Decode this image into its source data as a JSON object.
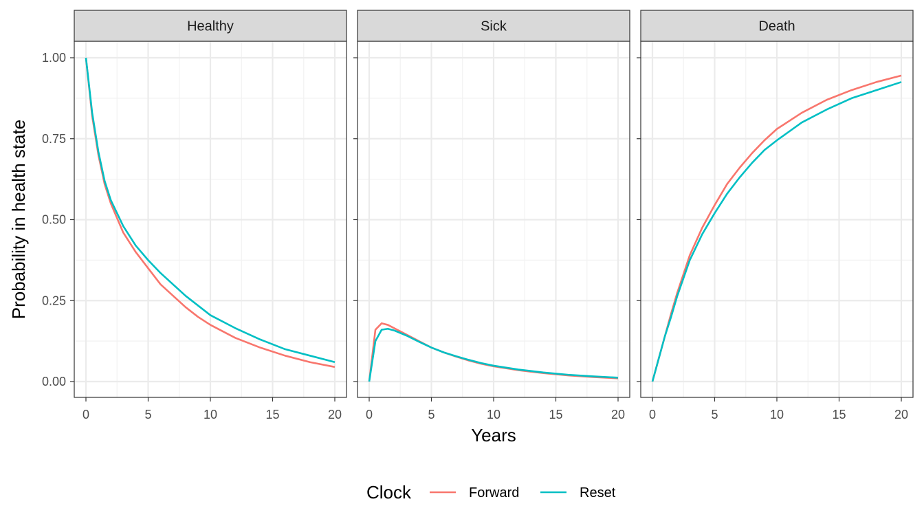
{
  "chart_data": {
    "type": "line",
    "xlabel": "Years",
    "ylabel": "Probability in health state",
    "xlim": [
      0,
      20
    ],
    "ylim": [
      0,
      1
    ],
    "x_ticks": [
      "0",
      "5",
      "10",
      "15",
      "20"
    ],
    "y_ticks": [
      "0.00",
      "0.25",
      "0.50",
      "0.75",
      "1.00"
    ],
    "grid": true,
    "legend": {
      "title": "Clock",
      "position": "bottom"
    },
    "series_colors": {
      "Forward": "#F8766D",
      "Reset": "#00BFC4"
    },
    "x": [
      0,
      0.5,
      1,
      1.5,
      2,
      3,
      4,
      5,
      6,
      7,
      8,
      9,
      10,
      12,
      14,
      16,
      18,
      20
    ],
    "panels": [
      {
        "title": "Healthy",
        "series": [
          {
            "name": "Forward",
            "values": [
              1.0,
              0.82,
              0.7,
              0.61,
              0.55,
              0.46,
              0.4,
              0.35,
              0.3,
              0.265,
              0.23,
              0.2,
              0.175,
              0.135,
              0.105,
              0.08,
              0.06,
              0.045
            ]
          },
          {
            "name": "Reset",
            "values": [
              1.0,
              0.83,
              0.71,
              0.62,
              0.56,
              0.48,
              0.42,
              0.375,
              0.335,
              0.3,
              0.265,
              0.235,
              0.205,
              0.165,
              0.13,
              0.1,
              0.08,
              0.06
            ]
          }
        ]
      },
      {
        "title": "Sick",
        "series": [
          {
            "name": "Forward",
            "values": [
              0.0,
              0.16,
              0.18,
              0.175,
              0.165,
              0.145,
              0.125,
              0.105,
              0.09,
              0.077,
              0.065,
              0.055,
              0.047,
              0.035,
              0.026,
              0.019,
              0.014,
              0.01
            ]
          },
          {
            "name": "Reset",
            "values": [
              0.0,
              0.125,
              0.16,
              0.163,
              0.158,
              0.142,
              0.123,
              0.105,
              0.09,
              0.078,
              0.067,
              0.057,
              0.049,
              0.037,
              0.028,
              0.021,
              0.016,
              0.012
            ]
          }
        ]
      },
      {
        "title": "Death",
        "series": [
          {
            "name": "Forward",
            "values": [
              0.0,
              0.07,
              0.14,
              0.21,
              0.275,
              0.39,
              0.475,
              0.545,
              0.61,
              0.66,
              0.705,
              0.745,
              0.78,
              0.83,
              0.87,
              0.9,
              0.925,
              0.945
            ]
          },
          {
            "name": "Reset",
            "values": [
              0.0,
              0.07,
              0.14,
              0.2,
              0.265,
              0.375,
              0.455,
              0.52,
              0.58,
              0.63,
              0.675,
              0.715,
              0.745,
              0.8,
              0.84,
              0.875,
              0.9,
              0.925
            ]
          }
        ]
      }
    ]
  }
}
